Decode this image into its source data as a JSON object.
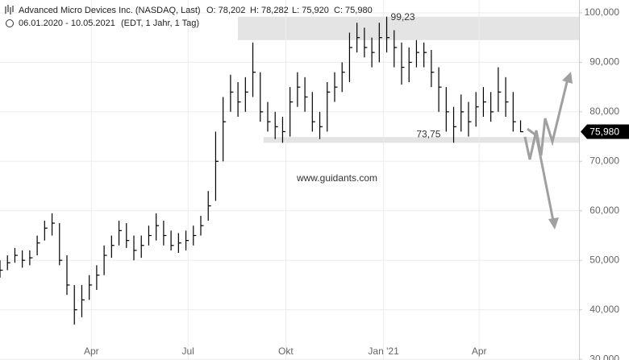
{
  "chart_data": {
    "type": "ohlc",
    "title": "Advanced Micro Devices Inc. (NASDAQ, Last)",
    "ohlc_header": [
      "O: 78,202",
      "H: 78,282",
      "L: 75,920",
      "C: 75,980"
    ],
    "subtitle": "06.01.2020 - 10.05.2021",
    "subtitle_note": "(EDT, 1 Jahr, 1 Tag)",
    "watermark": "www.guidants.com",
    "last_price": {
      "value": 75.98,
      "label": "75,980"
    },
    "color": "#000000",
    "grid": true,
    "xlim": [
      0,
      545
    ],
    "xticks": [
      {
        "value": 86,
        "label": "Apr"
      },
      {
        "value": 177,
        "label": "Jul"
      },
      {
        "value": 269,
        "label": "Okt"
      },
      {
        "value": 361,
        "label": "Jan '21"
      },
      {
        "value": 451,
        "label": "Apr"
      }
    ],
    "ylim": [
      29.85,
      102.6
    ],
    "yticks": [
      {
        "value": 30,
        "label": "30,000"
      },
      {
        "value": 40,
        "label": "40,000"
      },
      {
        "value": 50,
        "label": "50,000"
      },
      {
        "value": 60,
        "label": "60,000"
      },
      {
        "value": 70,
        "label": "70,000"
      },
      {
        "value": 80,
        "label": "80,000"
      },
      {
        "value": 90,
        "label": "90,000"
      },
      {
        "value": 100,
        "label": "100,000"
      }
    ],
    "zones": [
      {
        "x": [
          224,
          545
        ],
        "y": [
          94.5,
          99.23
        ],
        "color": "#e4e4e4",
        "label": {
          "value": 99.23,
          "label": "99,23"
        }
      },
      {
        "x": [
          248,
          545
        ],
        "y": [
          73.75,
          74.9
        ],
        "color": "#e4e4e4",
        "label": {
          "value": 73.75,
          "label": "73,75"
        }
      }
    ],
    "x": [
      0,
      7,
      14,
      21,
      28,
      35,
      42,
      49,
      56,
      63,
      70,
      77,
      84,
      91,
      98,
      105,
      112,
      119,
      126,
      133,
      140,
      147,
      154,
      161,
      168,
      175,
      182,
      189,
      196,
      203,
      210,
      217,
      224,
      231,
      238,
      245,
      252,
      259,
      266,
      273,
      280,
      287,
      294,
      301,
      308,
      315,
      322,
      329,
      336,
      343,
      350,
      357,
      364,
      371,
      378,
      385,
      392,
      399,
      406,
      413,
      420,
      427,
      434,
      441,
      448,
      455,
      462,
      469,
      476,
      483,
      490
    ],
    "high": [
      50,
      51,
      52.5,
      52,
      52,
      55,
      58,
      59.5,
      57.5,
      51,
      45,
      45,
      47,
      49,
      53,
      55,
      58,
      57.5,
      55,
      55,
      57,
      59.5,
      58,
      56,
      55.5,
      56,
      57,
      59,
      64,
      76,
      83,
      87.5,
      86,
      87,
      94,
      88,
      82,
      80,
      79,
      85,
      88,
      87,
      84,
      80,
      86,
      88,
      90,
      96,
      98,
      97,
      95,
      98,
      99.23,
      96.5,
      94,
      93,
      94.5,
      94,
      92.5,
      89,
      85,
      81,
      83.5,
      82,
      84,
      85,
      84,
      89,
      87,
      84,
      78.282
    ],
    "low": [
      46.5,
      48,
      49.5,
      48.5,
      49,
      51,
      54,
      55,
      49,
      43,
      37,
      38.5,
      42,
      44,
      47,
      50.5,
      53,
      52.5,
      50,
      50.5,
      53,
      54,
      53,
      52,
      51.5,
      52,
      53,
      55,
      58,
      62,
      70,
      80,
      79,
      80,
      83,
      78,
      76,
      74.5,
      73.75,
      75,
      81,
      80,
      76,
      74.5,
      76,
      82,
      84,
      86,
      92,
      91,
      89,
      90,
      92,
      89,
      85.5,
      86,
      89,
      89,
      85,
      80,
      76,
      73.75,
      76,
      75,
      77,
      79,
      78,
      80,
      79,
      76,
      75.92
    ],
    "close": [
      48,
      49.5,
      51,
      50,
      50.5,
      53.5,
      56.5,
      57.5,
      50,
      45,
      40,
      42,
      45,
      47,
      51,
      53,
      56,
      54,
      52,
      53,
      55,
      57,
      55,
      53,
      53.5,
      54,
      55,
      57,
      61,
      70,
      78,
      84,
      82,
      84,
      88,
      80,
      78,
      77,
      76,
      82,
      85,
      83,
      78,
      77,
      84,
      85,
      88,
      93,
      95,
      93,
      92,
      95,
      95,
      93,
      89,
      90,
      92,
      92,
      88,
      85,
      80,
      77,
      80,
      78,
      81,
      82,
      80,
      84,
      82,
      78,
      75.98
    ]
  }
}
